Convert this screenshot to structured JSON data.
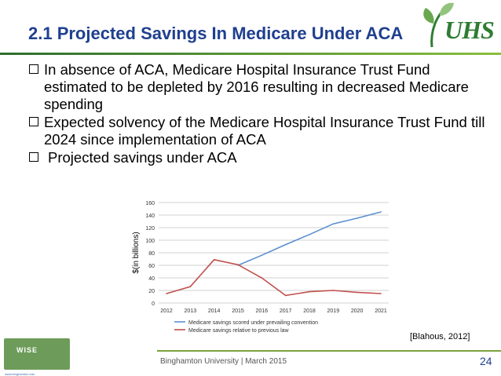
{
  "slide": {
    "title": "2.1 Projected Savings In Medicare Under ACA",
    "logo_text": "UHS",
    "bullets": [
      "In absence of ACA, Medicare Hospital Insurance Trust Fund estimated to be depleted by 2016 resulting in decreased Medicare spending",
      "Expected solvency of the Medicare Hospital Insurance Trust Fund till 2024 since implementation of ACA",
      "Projected savings under ACA"
    ],
    "citation": "[Blahous, 2012]",
    "footer": "Binghamton University | March 2015",
    "page_number": "24",
    "wise_logo": "WISE",
    "wise_url": "www.binghamton.edu"
  },
  "colors": {
    "title": "#1f3f8f",
    "blue_series": "#5b8fd0",
    "red_series": "#c0504d"
  },
  "chart_data": {
    "type": "line",
    "ylabel": "$(in billions)",
    "x": [
      "2012",
      "2013",
      "2014",
      "2015",
      "2016",
      "2017",
      "2018",
      "2019",
      "2020",
      "2021"
    ],
    "ylim": [
      0,
      160
    ],
    "yticks": [
      0,
      20,
      40,
      60,
      80,
      100,
      120,
      140,
      160
    ],
    "grid": true,
    "legend_position": "bottom",
    "series": [
      {
        "name": "Medicare savings scored under prevailing convention",
        "color": "#5b8fd0",
        "values": [
          null,
          null,
          null,
          60,
          76,
          93,
          109,
          126,
          135,
          145
        ]
      },
      {
        "name": "Medicare savings relative to previous law",
        "color": "#c0504d",
        "values": [
          15,
          26,
          69,
          61,
          40,
          12,
          18,
          20,
          17,
          15
        ]
      }
    ]
  }
}
